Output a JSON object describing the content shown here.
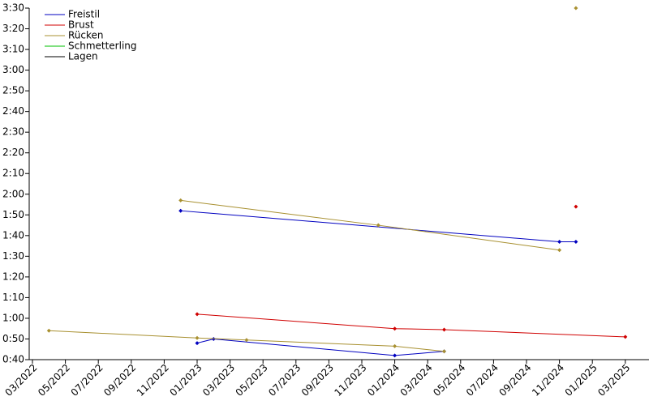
{
  "chart_data": {
    "type": "line",
    "series": [
      {
        "name": "Freistil",
        "color": "#0000c0",
        "tracks": [
          {
            "x": [
              "2022-12",
              "2024-11",
              "2024-12"
            ],
            "values": [
              112,
              97,
              97
            ]
          },
          {
            "x": [
              "2023-01",
              "2023-02",
              "2024-01",
              "2024-04"
            ],
            "values": [
              48,
              50,
              42,
              44
            ]
          }
        ]
      },
      {
        "name": "Brust",
        "color": "#d00000",
        "tracks": [
          {
            "x": [
              "2024-12"
            ],
            "values": [
              114
            ]
          },
          {
            "x": [
              "2023-01",
              "2024-01",
              "2024-04",
              "2025-03"
            ],
            "values": [
              62,
              55,
              54.5,
              51
            ]
          }
        ]
      },
      {
        "name": "Rücken",
        "color": "#a89030",
        "tracks": [
          {
            "x": [
              "2022-12",
              "2023-12",
              "2024-11"
            ],
            "values": [
              117,
              105,
              93
            ]
          },
          {
            "x": [
              "2024-12"
            ],
            "values": [
              210
            ]
          },
          {
            "x": [
              "2022-04",
              "2023-01",
              "2023-04",
              "2024-01",
              "2024-04"
            ],
            "values": [
              54,
              50.5,
              49.5,
              46.5,
              44
            ]
          }
        ]
      },
      {
        "name": "Schmetterling",
        "color": "#00c000",
        "tracks": []
      },
      {
        "name": "Lagen",
        "color": "#000000",
        "tracks": []
      }
    ],
    "xlim": [
      "2022-03",
      "2025-04"
    ],
    "xticks": [
      {
        "value": "2022-03",
        "label": "03/2022"
      },
      {
        "value": "2022-05",
        "label": "05/2022"
      },
      {
        "value": "2022-07",
        "label": "07/2022"
      },
      {
        "value": "2022-09",
        "label": "09/2022"
      },
      {
        "value": "2022-11",
        "label": "11/2022"
      },
      {
        "value": "2023-01",
        "label": "01/2023"
      },
      {
        "value": "2023-03",
        "label": "03/2023"
      },
      {
        "value": "2023-05",
        "label": "05/2023"
      },
      {
        "value": "2023-07",
        "label": "07/2023"
      },
      {
        "value": "2023-09",
        "label": "09/2023"
      },
      {
        "value": "2023-11",
        "label": "11/2023"
      },
      {
        "value": "2024-01",
        "label": "01/2024"
      },
      {
        "value": "2024-03",
        "label": "03/2024"
      },
      {
        "value": "2024-05",
        "label": "05/2024"
      },
      {
        "value": "2024-07",
        "label": "07/2024"
      },
      {
        "value": "2024-09",
        "label": "09/2024"
      },
      {
        "value": "2024-11",
        "label": "11/2024"
      },
      {
        "value": "2025-01",
        "label": "01/2025"
      },
      {
        "value": "2025-03",
        "label": "03/2025"
      }
    ],
    "ylim": [
      40,
      210
    ],
    "yticks": [
      {
        "value": 40,
        "label": "0:40"
      },
      {
        "value": 50,
        "label": "0:50"
      },
      {
        "value": 60,
        "label": "1:00"
      },
      {
        "value": 70,
        "label": "1:10"
      },
      {
        "value": 80,
        "label": "1:20"
      },
      {
        "value": 90,
        "label": "1:30"
      },
      {
        "value": 100,
        "label": "1:40"
      },
      {
        "value": 110,
        "label": "1:50"
      },
      {
        "value": 120,
        "label": "2:00"
      },
      {
        "value": 130,
        "label": "2:10"
      },
      {
        "value": 140,
        "label": "2:20"
      },
      {
        "value": 150,
        "label": "2:30"
      },
      {
        "value": 160,
        "label": "2:40"
      },
      {
        "value": 170,
        "label": "2:50"
      },
      {
        "value": 180,
        "label": "3:00"
      },
      {
        "value": 190,
        "label": "3:10"
      },
      {
        "value": 200,
        "label": "3:20"
      },
      {
        "value": 210,
        "label": "3:30"
      }
    ],
    "legend": "top-left"
  }
}
